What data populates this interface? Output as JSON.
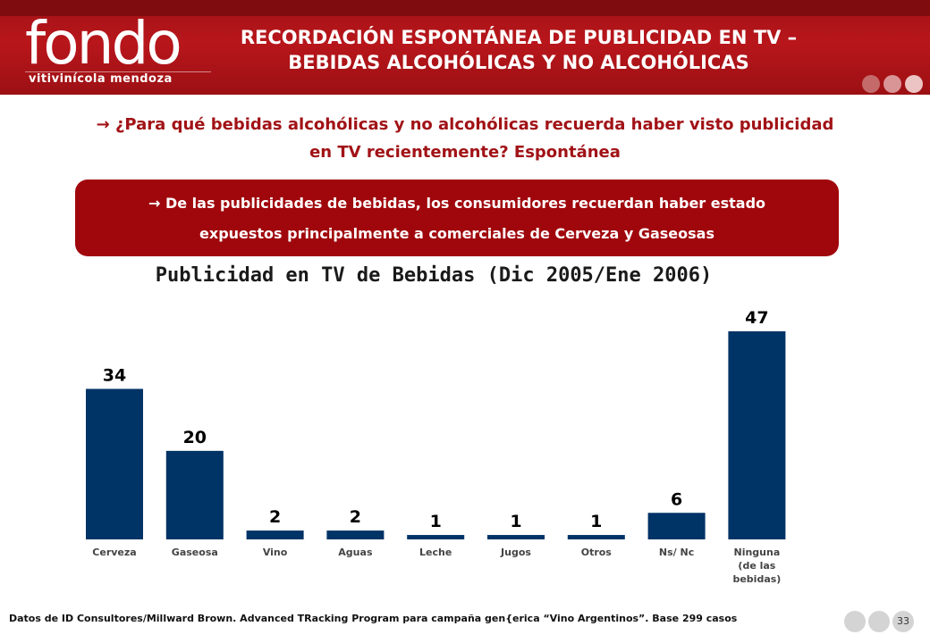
{
  "header": {
    "logo_text": "fondo",
    "logo_subtitle": "vitivinícola mendoza",
    "title_line1": "RECORDACIÓN ESPONTÁNEA DE PUBLICIDAD EN TV –",
    "title_line2": "BEBIDAS ALCOHÓLICAS Y NO ALCOHÓLICAS",
    "accent_color": "#a11216"
  },
  "question": {
    "arrow": "→",
    "text": "¿Para qué bebidas alcohólicas y no alcohólicas recuerda haber visto publicidad en TV recientemente? Espontánea"
  },
  "callout": {
    "arrow": "→",
    "line1": "De las publicidades de bebidas, los consumidores recuerdan haber estado",
    "line2": "expuestos principalmente a comerciales de Cerveza y Gaseosas",
    "color": "#a0070c"
  },
  "chart_data": {
    "type": "bar",
    "title": "Publicidad en TV de Bebidas (Dic 2005/Ene 2006)",
    "categories": [
      "Cerveza",
      "Gaseosa",
      "Vino",
      "Aguas",
      "Leche",
      "Jugos",
      "Otros",
      "Ns/ Nc",
      "Ninguna (de las bebidas)"
    ],
    "category_lines": [
      [
        "Cerveza"
      ],
      [
        "Gaseosa"
      ],
      [
        "Vino"
      ],
      [
        "Aguas"
      ],
      [
        "Leche"
      ],
      [
        "Jugos"
      ],
      [
        "Otros"
      ],
      [
        "Ns/ Nc"
      ],
      [
        "Ninguna",
        "(de las",
        "bebidas)"
      ]
    ],
    "values": [
      34,
      20,
      2,
      2,
      1,
      1,
      1,
      6,
      47
    ],
    "ylim": [
      0,
      47
    ],
    "xlabel": "",
    "ylabel": "",
    "bar_color": "#003366",
    "grid": false
  },
  "footnote": "Datos de ID Consultores/Millward Brown. Advanced TRacking Program para campaña gen{erica “Vino Argentinos”. Base 299 casos",
  "page_number": "33"
}
